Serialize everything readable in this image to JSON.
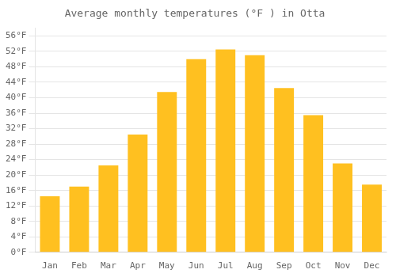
{
  "chart_data": {
    "type": "bar",
    "title": "Average monthly temperatures (°F ) in Otta",
    "categories": [
      "Jan",
      "Feb",
      "Mar",
      "Apr",
      "May",
      "Jun",
      "Jul",
      "Aug",
      "Sep",
      "Oct",
      "Nov",
      "Dec"
    ],
    "values": [
      14.5,
      17.0,
      22.5,
      30.5,
      41.5,
      50.0,
      52.5,
      51.0,
      42.5,
      35.5,
      23.0,
      17.5
    ],
    "color": "#FFC020",
    "ylim": [
      0,
      58
    ],
    "yticks": [
      {
        "value": 0,
        "label": "0°F"
      },
      {
        "value": 4,
        "label": "4°F"
      },
      {
        "value": 8,
        "label": "8°F"
      },
      {
        "value": 12,
        "label": "12°F"
      },
      {
        "value": 16,
        "label": "16°F"
      },
      {
        "value": 20,
        "label": "20°F"
      },
      {
        "value": 24,
        "label": "24°F"
      },
      {
        "value": 28,
        "label": "28°F"
      },
      {
        "value": 32,
        "label": "32°F"
      },
      {
        "value": 36,
        "label": "36°F"
      },
      {
        "value": 40,
        "label": "40°F"
      },
      {
        "value": 44,
        "label": "44°F"
      },
      {
        "value": 48,
        "label": "48°F"
      },
      {
        "value": 52,
        "label": "52°F"
      },
      {
        "value": 56,
        "label": "56°F"
      }
    ],
    "grid": true
  }
}
